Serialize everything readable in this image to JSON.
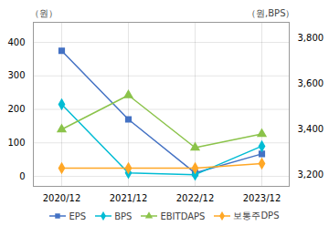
{
  "chart_data": {
    "type": "line",
    "categories": [
      "2020/12",
      "2021/12",
      "2022/12",
      "2023/12"
    ],
    "ylabel": "（원）",
    "y2label": "（원,BPS）",
    "ylim": [
      -30,
      460
    ],
    "yticks": [
      0,
      100,
      200,
      300,
      400
    ],
    "y2lim": [
      3150,
      3870
    ],
    "y2ticks": [
      {
        "value": 3200,
        "label": "3,200"
      },
      {
        "value": 3400,
        "label": "3,400"
      },
      {
        "value": 3600,
        "label": "3,600"
      },
      {
        "value": 3800,
        "label": "3,800"
      }
    ],
    "grid": true,
    "legend": "bottom",
    "series": [
      {
        "name": "EPS",
        "color": "#4472c4",
        "marker": "square",
        "values": [
          375,
          170,
          10,
          67
        ]
      },
      {
        "name": "BPS",
        "color": "#00bcd4",
        "marker": "diamond",
        "values": [
          215,
          10,
          5,
          90
        ]
      },
      {
        "name": "EBITDAPS",
        "color": "#8bc34a",
        "marker": "triangle",
        "values": [
          3400,
          3550,
          3320,
          3380
        ],
        "axis": "y2"
      },
      {
        "name": "보통주DPS",
        "color": "#ffa726",
        "marker": "diamond",
        "values": [
          3230,
          3230,
          3230,
          3250
        ],
        "axis": "y2"
      }
    ]
  }
}
